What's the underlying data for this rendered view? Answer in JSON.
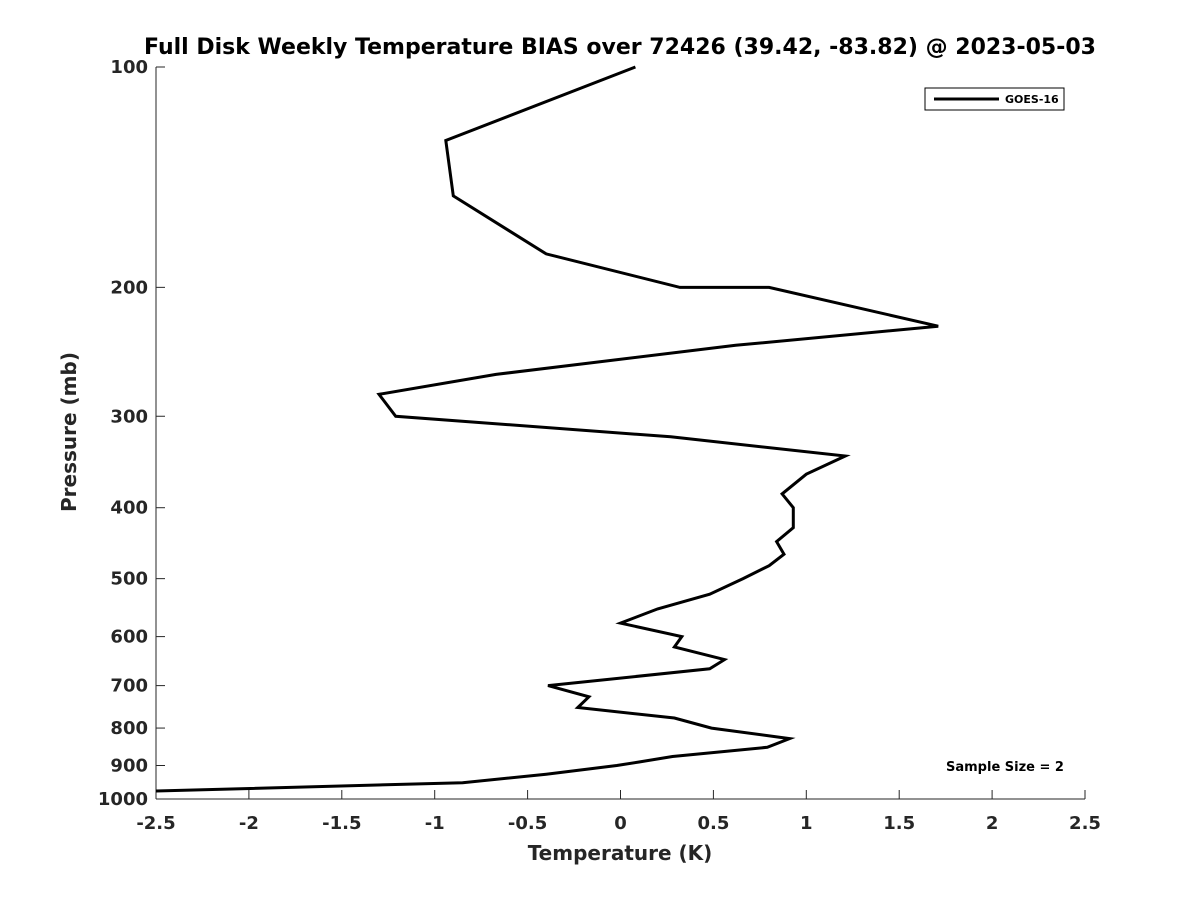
{
  "chart_data": {
    "type": "line",
    "title": "Full Disk Weekly Temperature BIAS over 72426 (39.42, -83.82) @ 2023-05-03",
    "xlabel": "Temperature (K)",
    "ylabel": "Pressure (mb)",
    "xlim": [
      -2.5,
      2.5
    ],
    "ylim": [
      100,
      1000
    ],
    "y_scale": "log",
    "y_reversed": true,
    "grid": false,
    "x_ticks": [
      "-2.5",
      "-2",
      "-1.5",
      "-1",
      "-0.5",
      "0",
      "0.5",
      "1",
      "1.5",
      "2",
      "2.5"
    ],
    "x_tick_values": [
      -2.5,
      -2,
      -1.5,
      -1,
      -0.5,
      0,
      0.5,
      1,
      1.5,
      2,
      2.5
    ],
    "y_ticks": [
      "100",
      "200",
      "300",
      "400",
      "500",
      "600",
      "700",
      "800",
      "900",
      "1000"
    ],
    "y_tick_values": [
      100,
      200,
      300,
      400,
      500,
      600,
      700,
      800,
      900,
      1000
    ],
    "legend_position": "top-right",
    "line_color": "#000000",
    "series": [
      {
        "name": "GOES-16",
        "points": [
          [
            0.08,
            100
          ],
          [
            -0.94,
            126
          ],
          [
            -0.9,
            150
          ],
          [
            -0.4,
            180
          ],
          [
            0.32,
            200
          ],
          [
            0.8,
            200
          ],
          [
            1.71,
            226
          ],
          [
            0.62,
            240
          ],
          [
            -0.67,
            263
          ],
          [
            -1.3,
            280
          ],
          [
            -1.21,
            300
          ],
          [
            0.27,
            320
          ],
          [
            1.21,
            340
          ],
          [
            1.0,
            360
          ],
          [
            0.87,
            383
          ],
          [
            0.93,
            400
          ],
          [
            0.93,
            426
          ],
          [
            0.84,
            445
          ],
          [
            0.88,
            463
          ],
          [
            0.8,
            480
          ],
          [
            0.66,
            500
          ],
          [
            0.48,
            525
          ],
          [
            0.2,
            550
          ],
          [
            0.0,
            575
          ],
          [
            0.33,
            600
          ],
          [
            0.29,
            620
          ],
          [
            0.56,
            645
          ],
          [
            0.48,
            664
          ],
          [
            -0.39,
            700
          ],
          [
            -0.17,
            725
          ],
          [
            -0.23,
            750
          ],
          [
            0.29,
            775
          ],
          [
            0.49,
            800
          ],
          [
            0.91,
            827
          ],
          [
            0.79,
            850
          ],
          [
            0.28,
            875
          ],
          [
            0.1,
            890
          ],
          [
            -0.02,
            900
          ],
          [
            -0.4,
            925
          ],
          [
            -0.85,
            950
          ],
          [
            -2.5,
            975
          ]
        ]
      }
    ],
    "annotation": "Sample Size = 2"
  }
}
